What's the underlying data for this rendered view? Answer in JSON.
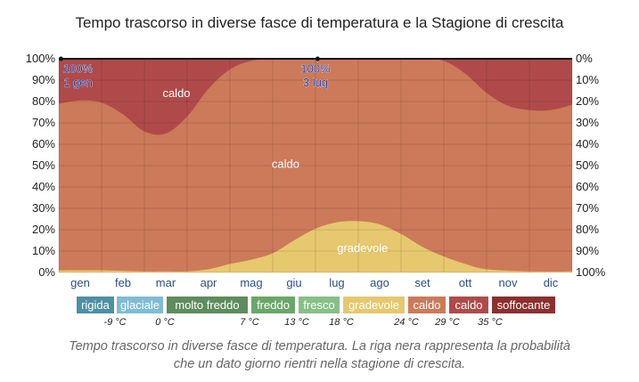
{
  "title": "Tempo trascorso in diverse fasce di temperatura e la Stagione di crescita",
  "caption_line1": "Tempo trascorso in diverse fasce di temperatura. La riga nera rappresenta la probabilità",
  "caption_line2": "che un dato giorno rientri nella stagione di crescita.",
  "legend": [
    {
      "label": "rigida",
      "color": "#4d8fa5"
    },
    {
      "label": "glaciale",
      "color": "#7fbcd3"
    },
    {
      "label": "molto freddo",
      "color": "#5e8c5e"
    },
    {
      "label": "freddo",
      "color": "#6aa66a"
    },
    {
      "label": "fresco",
      "color": "#87c087"
    },
    {
      "label": "gradevole",
      "color": "#e6c86e"
    },
    {
      "label": "caldo",
      "color": "#cc7a5a"
    },
    {
      "label": "caldo",
      "color": "#b04a4a"
    },
    {
      "label": "soffocante",
      "color": "#8c2f2f"
    }
  ],
  "legend_thresholds": [
    "-9 °C",
    "0 °C",
    "7 °C",
    "13 °C",
    "18 °C",
    "24 °C",
    "29 °C",
    "35 °C"
  ],
  "chart_data": {
    "type": "area",
    "title": "Tempo trascorso in diverse fasce di temperatura e la Stagione di crescita",
    "categories": [
      "gen",
      "feb",
      "mar",
      "apr",
      "mag",
      "giu",
      "lug",
      "ago",
      "set",
      "ott",
      "nov",
      "dic"
    ],
    "y_left_ticks": [
      "0%",
      "10%",
      "20%",
      "30%",
      "40%",
      "50%",
      "60%",
      "70%",
      "80%",
      "90%",
      "100%"
    ],
    "y_right_ticks": [
      "100%",
      "90%",
      "80%",
      "70%",
      "60%",
      "50%",
      "40%",
      "30%",
      "20%",
      "10%",
      "0%"
    ],
    "ylim": [
      0,
      100
    ],
    "grid": true,
    "series": [
      {
        "name": "gradevole",
        "color": "#e6c86e",
        "x": [
          0,
          1,
          2,
          2.5,
          3,
          3.5,
          4,
          4.5,
          5,
          5.5,
          6,
          6.5,
          7,
          7.5,
          8,
          8.5,
          9,
          9.5,
          10,
          11,
          12
        ],
        "values": [
          1,
          1,
          0.5,
          0.5,
          0.5,
          1.5,
          4,
          6,
          9,
          15,
          20.5,
          23.5,
          24,
          22.5,
          18,
          12,
          7.5,
          4,
          1.5,
          0.5,
          0.5
        ]
      },
      {
        "name": "caldo",
        "color": "#cc7a5a",
        "x": [
          0,
          0.5,
          1,
          1.5,
          2,
          2.5,
          3,
          3.5,
          4,
          4.5,
          5,
          5.5,
          6,
          6.5,
          7,
          7.5,
          8,
          8.5,
          9,
          9.5,
          10,
          10.5,
          11,
          11.5,
          12
        ],
        "top": [
          79,
          80.5,
          79.5,
          74,
          66,
          65,
          73,
          86,
          95,
          99,
          100,
          100,
          100,
          100,
          100,
          100,
          100,
          100,
          99,
          93,
          84,
          78,
          76,
          76,
          78.5
        ]
      },
      {
        "name": "caldo",
        "color": "#b04a4a",
        "top": 100
      }
    ],
    "growing_season": {
      "label_percent": "100%",
      "dates": [
        "1 gen",
        "3 lug"
      ],
      "value": 100
    },
    "area_labels": [
      "caldo",
      "caldo",
      "gradevole"
    ]
  }
}
